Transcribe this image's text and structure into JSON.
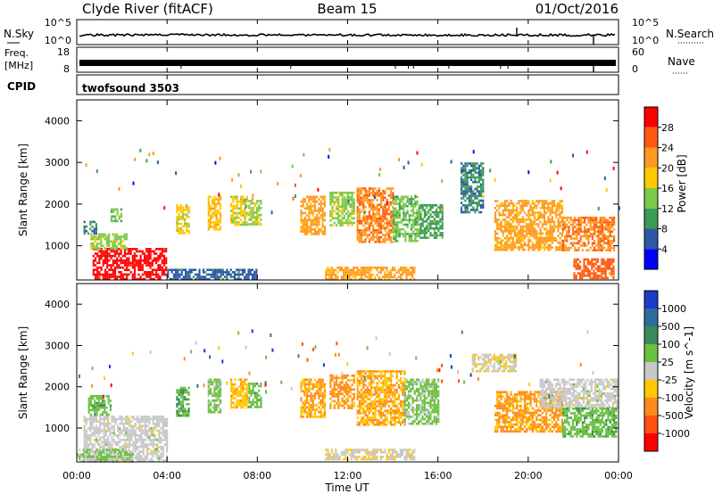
{
  "header": {
    "station": "Clyde River (fitACF)",
    "beam": "Beam 15",
    "date": "01/Oct/2016"
  },
  "strips": {
    "nsky_label": "N.Sky",
    "nsky_ticks": [
      "10^5",
      "10^0"
    ],
    "nsearch_label": "N.Search",
    "nsearch_ticks": [
      "10^5",
      "10^0"
    ],
    "freq_label_line1": "Freq.",
    "freq_label_line2": "[MHz]",
    "freq_ticks": [
      "18",
      "8"
    ],
    "nave_label": "Nave",
    "nave_ticks": [
      "60",
      "0"
    ],
    "cpid_label": "CPID",
    "cpid_value": "twofsound 3503"
  },
  "x_axis": {
    "label": "Time UT",
    "ticks": [
      "00:00",
      "04:00",
      "08:00",
      "12:00",
      "16:00",
      "20:00",
      "00:00"
    ]
  },
  "colors": {
    "power": [
      "#0000ff",
      "#2d59a4",
      "#3c9b57",
      "#7cc948",
      "#ffc800",
      "#ff9a1e",
      "#ff5a12",
      "#ff0000"
    ],
    "velocity": [
      "#1a3cc8",
      "#2e6ca0",
      "#3a8a5a",
      "#6cc040",
      "#c8c8c8",
      "#ffc800",
      "#ff8c1a",
      "#ff5010",
      "#ff0000"
    ]
  },
  "chart_data": [
    {
      "type": "heatmap",
      "panel": "power",
      "xlabel": "",
      "ylabel": "Slant Range [km]",
      "yticks": [
        "1000",
        "2000",
        "3000",
        "4000"
      ],
      "xlim_hours": [
        0,
        24
      ],
      "ylim_km": [
        180,
        4500
      ],
      "colorbar_label": "Power [dB]",
      "colorbar_ticks": [
        "4",
        "8",
        "12",
        "16",
        "20",
        "24",
        "28"
      ],
      "colorbar_range": [
        0,
        30
      ],
      "regions": [
        {
          "t": [
            0.7,
            4.0
          ],
          "r": [
            200,
            950
          ],
          "v": 28
        },
        {
          "t": [
            0.6,
            2.2
          ],
          "r": [
            950,
            1300
          ],
          "v": 14
        },
        {
          "t": [
            0.3,
            0.9
          ],
          "r": [
            1300,
            1600
          ],
          "v": 8
        },
        {
          "t": [
            1.5,
            2.0
          ],
          "r": [
            1600,
            1900
          ],
          "v": 12
        },
        {
          "t": [
            4.4,
            5.0
          ],
          "r": [
            1300,
            2000
          ],
          "v": 16
        },
        {
          "t": [
            5.8,
            6.4
          ],
          "r": [
            1400,
            2200
          ],
          "v": 18
        },
        {
          "t": [
            6.8,
            7.5
          ],
          "r": [
            1500,
            2200
          ],
          "v": 16
        },
        {
          "t": [
            7.6,
            8.2
          ],
          "r": [
            1500,
            2100
          ],
          "v": 14
        },
        {
          "t": [
            9.9,
            11.0
          ],
          "r": [
            1300,
            2200
          ],
          "v": 20
        },
        {
          "t": [
            11.2,
            12.3
          ],
          "r": [
            1500,
            2300
          ],
          "v": 14
        },
        {
          "t": [
            12.4,
            14.0
          ],
          "r": [
            1100,
            2400
          ],
          "v": 22
        },
        {
          "t": [
            14.0,
            15.2
          ],
          "r": [
            1100,
            2200
          ],
          "v": 12
        },
        {
          "t": [
            15.2,
            16.2
          ],
          "r": [
            1200,
            2000
          ],
          "v": 10
        },
        {
          "t": [
            17.0,
            18.0
          ],
          "r": [
            1800,
            3000
          ],
          "v": 8
        },
        {
          "t": [
            18.5,
            21.5
          ],
          "r": [
            900,
            2100
          ],
          "v": 20
        },
        {
          "t": [
            21.5,
            23.8
          ],
          "r": [
            900,
            1700
          ],
          "v": 22
        },
        {
          "t": [
            22.0,
            23.8
          ],
          "r": [
            200,
            700
          ],
          "v": 24
        },
        {
          "t": [
            11.0,
            15.0
          ],
          "r": [
            220,
            500
          ],
          "v": 20
        },
        {
          "t": [
            4.0,
            8.0
          ],
          "r": [
            200,
            450
          ],
          "v": 6
        }
      ]
    },
    {
      "type": "heatmap",
      "panel": "velocity",
      "xlabel": "Time UT",
      "ylabel": "Slant Range [km]",
      "yticks": [
        "1000",
        "2000",
        "3000",
        "4000"
      ],
      "xlim_hours": [
        0,
        24
      ],
      "ylim_km": [
        180,
        4500
      ],
      "colorbar_label": "Velocity [m s^-1]",
      "colorbar_ticks": [
        "1000",
        "500",
        "100",
        "25",
        "-25",
        "-100",
        "-500",
        "-1000"
      ],
      "colorbar_range": [
        -1200,
        1200
      ],
      "regions": [
        {
          "t": [
            0.3,
            4.0
          ],
          "r": [
            200,
            1300
          ],
          "v": 0
        },
        {
          "t": [
            0.5,
            1.5
          ],
          "r": [
            1300,
            1800
          ],
          "v": 300
        },
        {
          "t": [
            0.0,
            2.5
          ],
          "r": [
            200,
            500
          ],
          "v": 150
        },
        {
          "t": [
            4.4,
            5.0
          ],
          "r": [
            1300,
            2000
          ],
          "v": 400
        },
        {
          "t": [
            5.8,
            6.4
          ],
          "r": [
            1400,
            2200
          ],
          "v": 200
        },
        {
          "t": [
            6.8,
            7.5
          ],
          "r": [
            1500,
            2200
          ],
          "v": -300
        },
        {
          "t": [
            7.6,
            8.2
          ],
          "r": [
            1500,
            2100
          ],
          "v": 300
        },
        {
          "t": [
            9.9,
            11.0
          ],
          "r": [
            1300,
            2200
          ],
          "v": -400
        },
        {
          "t": [
            11.2,
            12.3
          ],
          "r": [
            1500,
            2300
          ],
          "v": -500
        },
        {
          "t": [
            12.4,
            14.5
          ],
          "r": [
            1100,
            2400
          ],
          "v": -400
        },
        {
          "t": [
            14.5,
            16.0
          ],
          "r": [
            1100,
            2200
          ],
          "v": 200
        },
        {
          "t": [
            17.5,
            19.5
          ],
          "r": [
            2400,
            2800
          ],
          "v": -100
        },
        {
          "t": [
            18.5,
            21.5
          ],
          "r": [
            900,
            1900
          ],
          "v": -450
        },
        {
          "t": [
            20.5,
            23.9
          ],
          "r": [
            1500,
            2200
          ],
          "v": 0
        },
        {
          "t": [
            21.5,
            23.9
          ],
          "r": [
            800,
            1500
          ],
          "v": 300
        },
        {
          "t": [
            11.0,
            15.0
          ],
          "r": [
            220,
            500
          ],
          "v": -80
        }
      ]
    }
  ]
}
